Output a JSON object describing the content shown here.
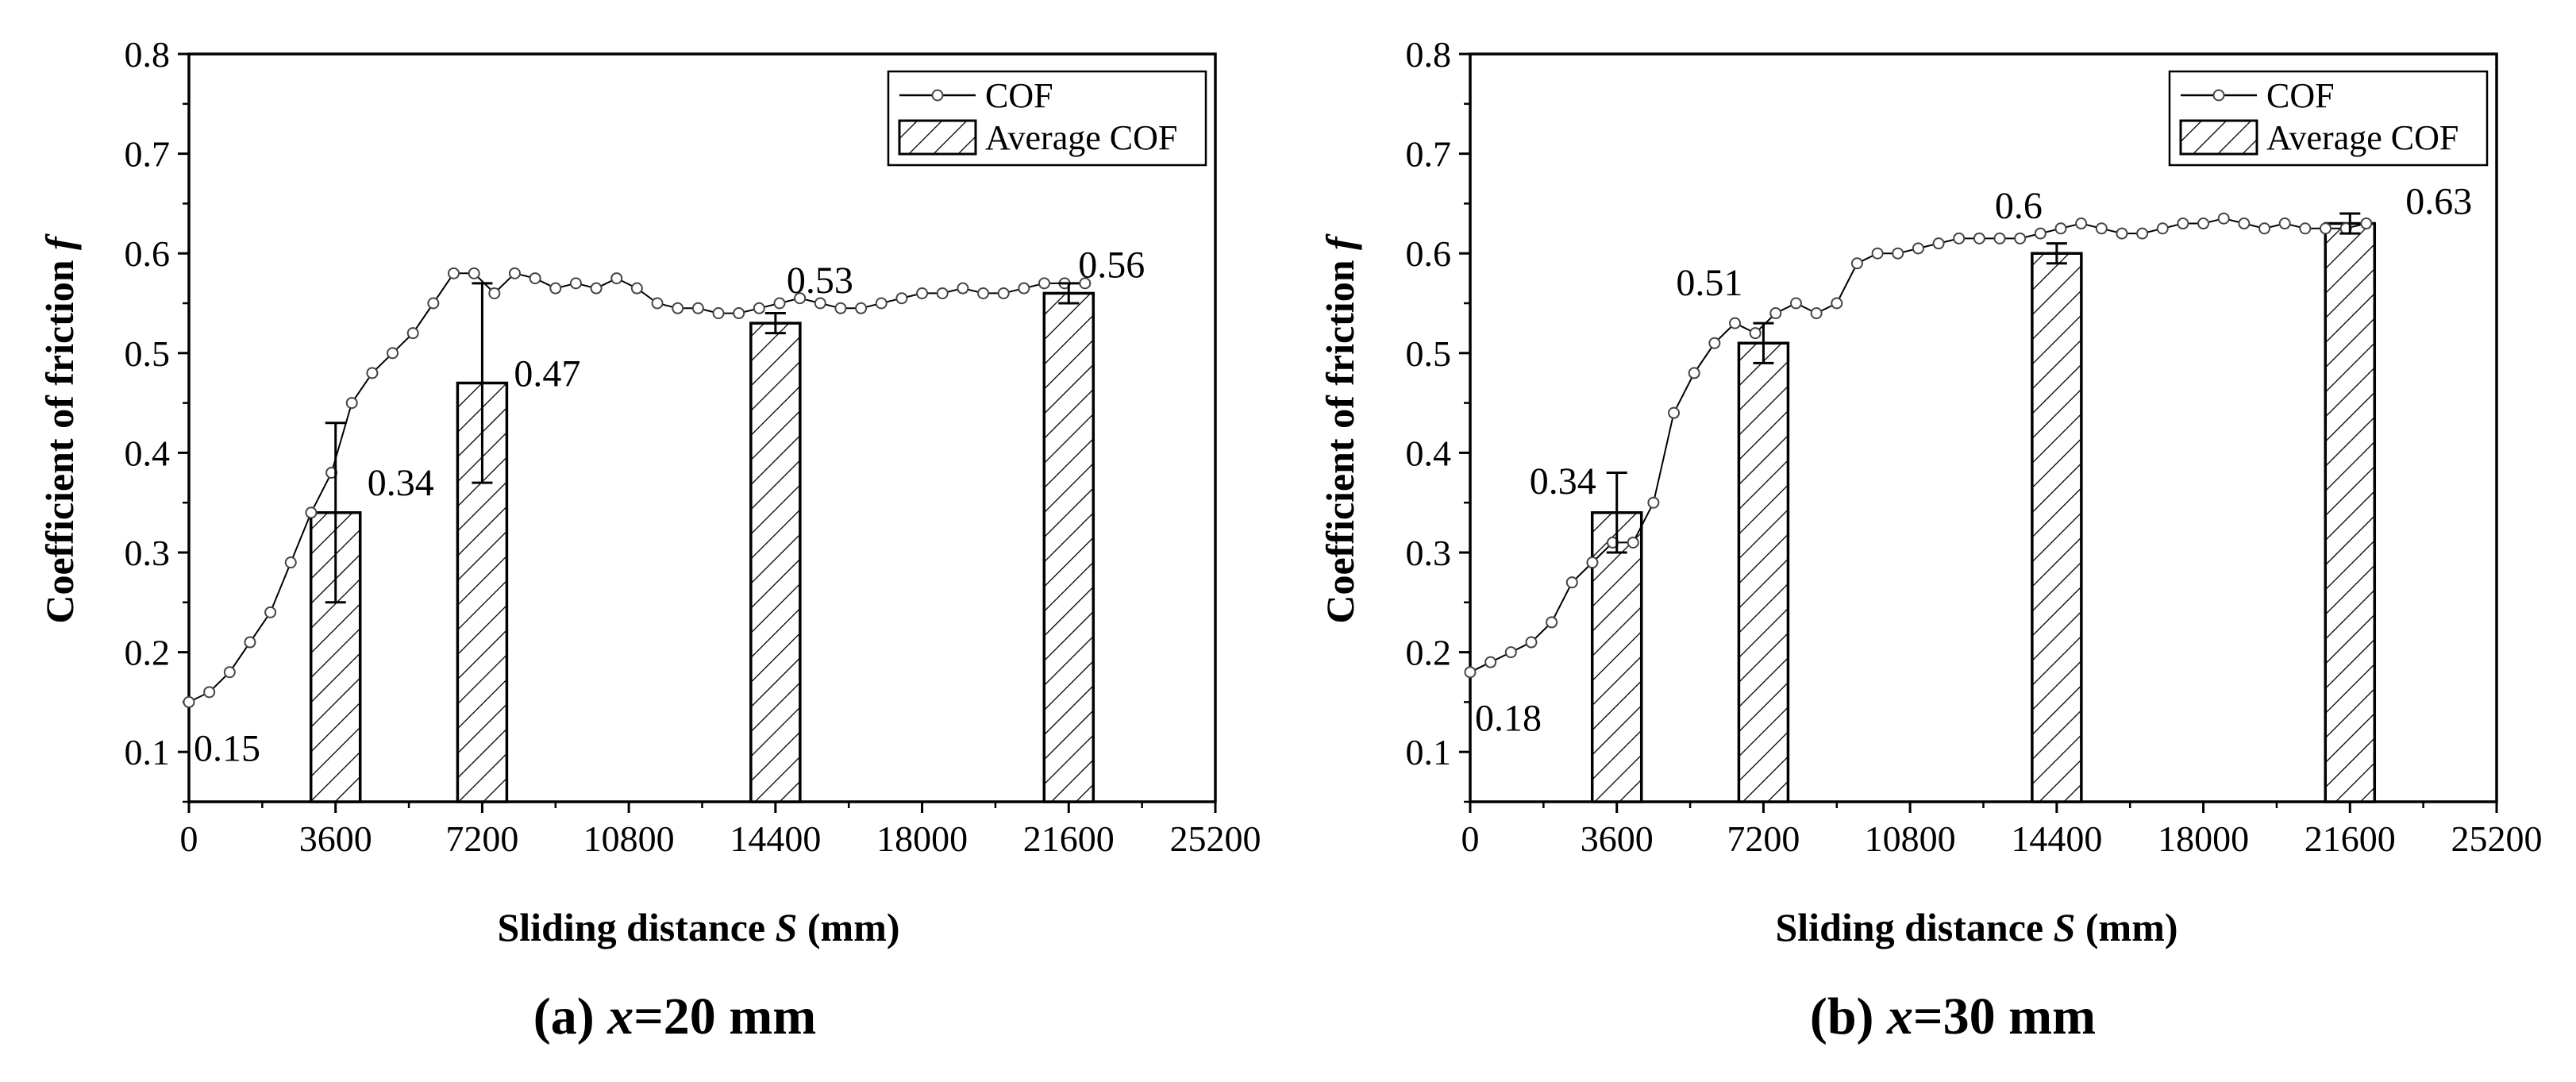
{
  "figure": {
    "panels": [
      {
        "caption_prefix": "(a) ",
        "caption_var": "x",
        "caption_suffix": "=20 mm",
        "xlabel_text": "Sliding distance ",
        "xlabel_var": "S",
        "xlabel_unit": " (mm)",
        "ylabel_text": "Coefficient of friction ",
        "ylabel_var": "f"
      },
      {
        "caption_prefix": "(b) ",
        "caption_var": "x",
        "caption_suffix": "=30 mm",
        "xlabel_text": "Sliding distance ",
        "xlabel_var": "S",
        "xlabel_unit": " (mm)",
        "ylabel_text": "Coefficient of friction ",
        "ylabel_var": "f"
      }
    ]
  },
  "chart_data": [
    {
      "type": "bar",
      "title": "(a) x=20 mm",
      "xlabel": "Sliding distance S (mm)",
      "ylabel": "Coefficient of friction f",
      "xlim": [
        0,
        25200
      ],
      "ylim": [
        0.05,
        0.8
      ],
      "xticks": [
        0,
        3600,
        7200,
        10800,
        14400,
        18000,
        21600,
        25200
      ],
      "yticks": [
        0.1,
        0.2,
        0.3,
        0.4,
        0.5,
        0.6,
        0.7,
        0.8
      ],
      "legend": {
        "position": "top-right",
        "entries": [
          "COF",
          "Average COF"
        ]
      },
      "bars": {
        "name": "Average COF",
        "x": [
          3600,
          7200,
          14400,
          21600
        ],
        "values": [
          0.34,
          0.47,
          0.53,
          0.56
        ],
        "errors": [
          0.09,
          0.1,
          0.01,
          0.01
        ],
        "labels": [
          "0.34",
          "0.47",
          "0.53",
          "0.56"
        ]
      },
      "line": {
        "name": "COF",
        "x": [
          0,
          500,
          1000,
          1500,
          2000,
          2500,
          3000,
          3500,
          4000,
          4500,
          5000,
          5500,
          6000,
          6500,
          7000,
          7500,
          8000,
          8500,
          9000,
          9500,
          10000,
          10500,
          11000,
          11500,
          12000,
          12500,
          13000,
          13500,
          14000,
          14500,
          15000,
          15500,
          16000,
          16500,
          17000,
          17500,
          18000,
          18500,
          19000,
          19500,
          20000,
          20500,
          21000,
          21500,
          22000
        ],
        "values": [
          0.15,
          0.16,
          0.18,
          0.21,
          0.24,
          0.29,
          0.34,
          0.38,
          0.45,
          0.48,
          0.5,
          0.52,
          0.55,
          0.58,
          0.58,
          0.56,
          0.58,
          0.575,
          0.565,
          0.57,
          0.565,
          0.575,
          0.565,
          0.55,
          0.545,
          0.545,
          0.54,
          0.54,
          0.545,
          0.55,
          0.555,
          0.55,
          0.545,
          0.545,
          0.55,
          0.555,
          0.56,
          0.56,
          0.565,
          0.56,
          0.56,
          0.565,
          0.57,
          0.57,
          0.57
        ]
      },
      "annotations": [
        {
          "x": 0,
          "y": 0.15,
          "text": "0.15"
        }
      ]
    },
    {
      "type": "bar",
      "title": "(b) x=30 mm",
      "xlabel": "Sliding distance S (mm)",
      "ylabel": "Coefficient of friction f",
      "xlim": [
        0,
        25200
      ],
      "ylim": [
        0.05,
        0.8
      ],
      "xticks": [
        0,
        3600,
        7200,
        10800,
        14400,
        18000,
        21600,
        25200
      ],
      "yticks": [
        0.1,
        0.2,
        0.3,
        0.4,
        0.5,
        0.6,
        0.7,
        0.8
      ],
      "legend": {
        "position": "top-right",
        "entries": [
          "COF",
          "Average COF"
        ]
      },
      "bars": {
        "name": "Average COF",
        "x": [
          3600,
          7200,
          14400,
          21600
        ],
        "values": [
          0.34,
          0.51,
          0.6,
          0.63
        ],
        "errors": [
          0.04,
          0.02,
          0.01,
          0.01
        ],
        "labels": [
          "0.34",
          "0.51",
          "0.6",
          "0.63"
        ]
      },
      "line": {
        "name": "COF",
        "x": [
          0,
          500,
          1000,
          1500,
          2000,
          2500,
          3000,
          3500,
          4000,
          4500,
          5000,
          5500,
          6000,
          6500,
          7000,
          7500,
          8000,
          8500,
          9000,
          9500,
          10000,
          10500,
          11000,
          11500,
          12000,
          12500,
          13000,
          13500,
          14000,
          14500,
          15000,
          15500,
          16000,
          16500,
          17000,
          17500,
          18000,
          18500,
          19000,
          19500,
          20000,
          20500,
          21000,
          21500,
          22000
        ],
        "values": [
          0.18,
          0.19,
          0.2,
          0.21,
          0.23,
          0.27,
          0.29,
          0.31,
          0.31,
          0.35,
          0.44,
          0.48,
          0.51,
          0.53,
          0.52,
          0.54,
          0.55,
          0.54,
          0.55,
          0.59,
          0.6,
          0.6,
          0.605,
          0.61,
          0.615,
          0.615,
          0.615,
          0.615,
          0.62,
          0.625,
          0.63,
          0.625,
          0.62,
          0.62,
          0.625,
          0.63,
          0.63,
          0.635,
          0.63,
          0.625,
          0.63,
          0.625,
          0.625,
          0.625,
          0.63
        ]
      },
      "annotations": [
        {
          "x": 0,
          "y": 0.18,
          "text": "0.18"
        }
      ]
    }
  ]
}
